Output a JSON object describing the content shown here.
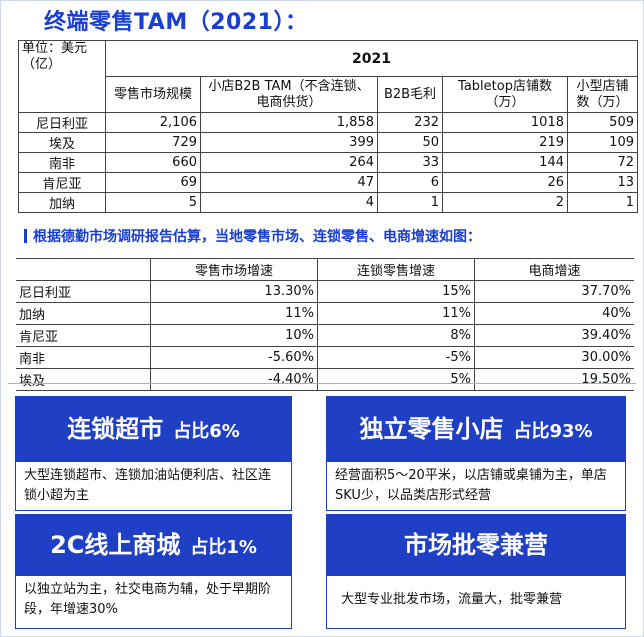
{
  "title": "终端零售TAM（2021）：",
  "table1": {
    "unit_label": "单位：美元（亿）",
    "year": "2021",
    "headers": [
      "零售市场规模",
      "小店B2B TAM（不含连锁、电商供货）",
      "B2B毛利",
      "Tabletop店铺数（万）",
      "小型店铺数（万）"
    ],
    "rows": [
      {
        "country": "尼日利亚",
        "values": [
          "2,106",
          "1,858",
          "232",
          "1018",
          "509"
        ]
      },
      {
        "country": "埃及",
        "values": [
          "729",
          "399",
          "50",
          "219",
          "109"
        ]
      },
      {
        "country": "南非",
        "values": [
          "660",
          "264",
          "33",
          "144",
          "72"
        ]
      },
      {
        "country": "肯尼亚",
        "values": [
          "69",
          "47",
          "6",
          "26",
          "13"
        ]
      },
      {
        "country": "加纳",
        "values": [
          "5",
          "4",
          "1",
          "2",
          "1"
        ]
      }
    ]
  },
  "note": "根据德勤市场调研报告估算，当地零售市场、连锁零售、电商增速如图：",
  "table2": {
    "headers": [
      "零售市场增速",
      "连锁零售增速",
      "电商增速"
    ],
    "rows": [
      {
        "country": "尼日利亚",
        "values": [
          "13.30%",
          "15%",
          "37.70%"
        ]
      },
      {
        "country": "加纳",
        "values": [
          "11%",
          "11%",
          "40%"
        ]
      },
      {
        "country": "肯尼亚",
        "values": [
          "10%",
          "8%",
          "39.40%"
        ]
      },
      {
        "country": "南非",
        "values": [
          "-5.60%",
          "-5%",
          "30.00%"
        ]
      },
      {
        "country": "埃及",
        "values": [
          "-4.40%",
          "5%",
          "19.50%"
        ]
      }
    ]
  },
  "cards": [
    {
      "title": "连锁超市",
      "share": "占比6%",
      "desc": "大型连锁超市、连锁加油站便利店、社区连锁小超为主"
    },
    {
      "title": "独立零售小店",
      "share": "占比93%",
      "desc": "经营面积5～20平米，以店铺或桌铺为主，单店SKU少，以品类店形式经营"
    },
    {
      "title": "2C线上商城",
      "share": "占比1%",
      "desc": "以独立站为主，社交电商为辅，处于早期阶段，年增速30%"
    },
    {
      "title": "市场批零兼营",
      "share": "",
      "desc": "大型专业批发市场，流量大，批零兼营"
    }
  ],
  "colors": {
    "accent": "#1f3fc4",
    "title": "#1a3fd0"
  }
}
